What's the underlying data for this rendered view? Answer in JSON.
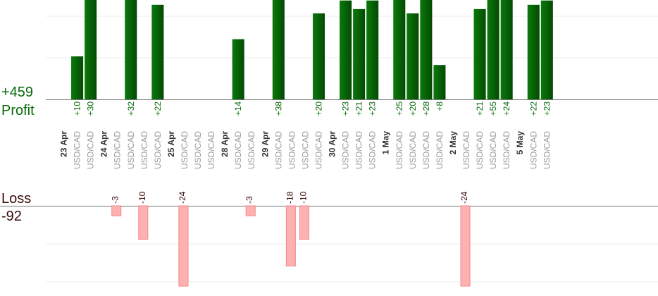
{
  "chart_data": {
    "type": "bar",
    "profit": {
      "label": "Profit",
      "total": "+459",
      "color": "#0b6b0b"
    },
    "loss": {
      "label": "Loss",
      "total": "-92",
      "color": "#ffb0b0"
    },
    "date_groups": [
      {
        "date": "23 Apr",
        "trades": [
          {
            "pair": "USD/CAD",
            "profit": 10
          },
          {
            "pair": "USD/CAD",
            "profit": 30
          }
        ]
      },
      {
        "date": "24 Apr",
        "trades": [
          {
            "pair": "USD/CAD",
            "loss": -3
          },
          {
            "pair": "USD/CAD",
            "profit": 32
          },
          {
            "pair": "USD/CAD",
            "loss": -10
          },
          {
            "pair": "USD/CAD",
            "profit": 22
          }
        ]
      },
      {
        "date": "25 Apr",
        "trades": [
          {
            "pair": "USD/CAD",
            "loss": -24
          },
          {
            "pair": "USD/CAD"
          },
          {
            "pair": "USD/CAD"
          }
        ]
      },
      {
        "date": "28 Apr",
        "trades": [
          {
            "pair": "USD/CAD",
            "profit": 14
          },
          {
            "pair": "USD/CAD",
            "loss": -3
          }
        ]
      },
      {
        "date": "29 Apr",
        "trades": [
          {
            "pair": "USD/CAD",
            "profit": 38
          },
          {
            "pair": "USD/CAD",
            "loss": -18
          },
          {
            "pair": "USD/CAD",
            "loss": -10
          },
          {
            "pair": "USD/CAD",
            "profit": 20
          }
        ]
      },
      {
        "date": "30 Apr",
        "trades": [
          {
            "pair": "USD/CAD",
            "profit": 23
          },
          {
            "pair": "USD/CAD",
            "profit": 21
          },
          {
            "pair": "USD/CAD",
            "profit": 23
          }
        ]
      },
      {
        "date": "1 May",
        "trades": [
          {
            "pair": "USD/CAD",
            "profit": 25
          },
          {
            "pair": "USD/CAD",
            "profit": 20
          },
          {
            "pair": "USD/CAD",
            "profit": 28
          },
          {
            "pair": "USD/CAD",
            "profit": 8
          }
        ]
      },
      {
        "date": "2 May",
        "trades": [
          {
            "pair": "USD/CAD",
            "loss": -24
          },
          {
            "pair": "USD/CAD",
            "profit": 21
          },
          {
            "pair": "USD/CAD",
            "profit": 55
          },
          {
            "pair": "USD/CAD",
            "profit": 24
          }
        ]
      },
      {
        "date": "5 May",
        "trades": [
          {
            "pair": "USD/CAD",
            "profit": 22
          },
          {
            "pair": "USD/CAD",
            "profit": 23
          }
        ]
      }
    ],
    "grid": true
  }
}
